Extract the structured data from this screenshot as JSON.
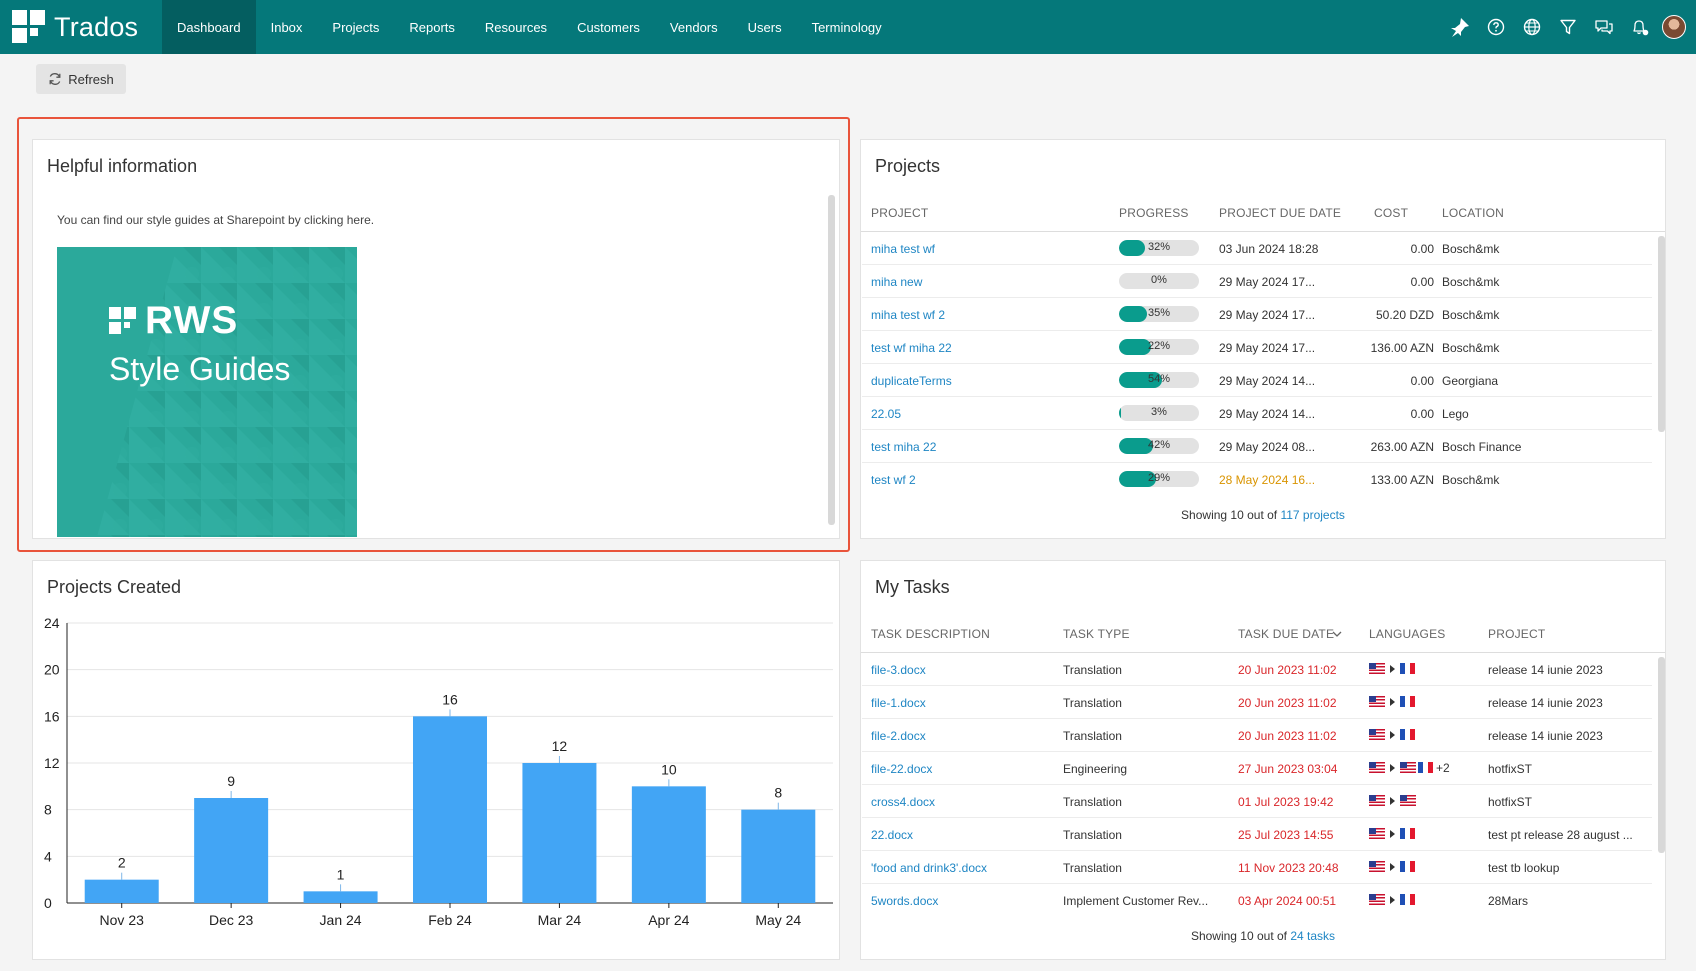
{
  "app": {
    "logo_text": "Trados",
    "nav": [
      "Dashboard",
      "Inbox",
      "Projects",
      "Reports",
      "Resources",
      "Customers",
      "Vendors",
      "Users",
      "Terminology"
    ],
    "active_nav": "Dashboard",
    "right_icons": [
      "pin-icon",
      "help-icon",
      "globe-icon",
      "filter-icon",
      "chat-icon",
      "notifications-icon"
    ],
    "accent_color": "#05787a"
  },
  "toolbar": {
    "refresh_label": "Refresh"
  },
  "helpful": {
    "title": "Helpful information",
    "text": "You can find our style guides at Sharepoint by clicking ",
    "link_text": "here",
    "text_end": ".",
    "banner_brand": "RWS",
    "banner_title": "Style Guides"
  },
  "projects": {
    "title": "Projects",
    "columns": [
      "PROJECT",
      "PROGRESS",
      "PROJECT DUE DATE",
      "COST",
      "LOCATION"
    ],
    "rows": [
      {
        "name": "miha test wf",
        "progress": 32,
        "due": "03 Jun 2024 18:28",
        "due_status": "normal",
        "cost": "0.00",
        "location": "Bosch&mk"
      },
      {
        "name": "miha new",
        "progress": 0,
        "due": "29 May 2024 17...",
        "due_status": "normal",
        "cost": "0.00",
        "location": "Bosch&mk"
      },
      {
        "name": "miha test wf 2",
        "progress": 35,
        "due": "29 May 2024 17...",
        "due_status": "normal",
        "cost": "50.20 DZD",
        "location": "Bosch&mk"
      },
      {
        "name": "test wf miha 22",
        "progress": 22,
        "due": "29 May 2024 17...",
        "due_status": "normal",
        "cost": "136.00 AZN",
        "location": "Bosch&mk"
      },
      {
        "name": "duplicateTerms",
        "progress": 54,
        "due": "29 May 2024 14...",
        "due_status": "normal",
        "cost": "0.00",
        "location": "Georgiana"
      },
      {
        "name": "22.05",
        "progress": 3,
        "due": "29 May 2024 14...",
        "due_status": "normal",
        "cost": "0.00",
        "location": "Lego"
      },
      {
        "name": "test miha 22",
        "progress": 42,
        "due": "29 May 2024 08...",
        "due_status": "normal",
        "cost": "263.00 AZN",
        "location": "Bosch Finance"
      },
      {
        "name": "test wf 2",
        "progress": 29,
        "due": "28 May 2024 16...",
        "due_status": "warning",
        "cost": "133.00 AZN",
        "location": "Bosch&mk"
      }
    ],
    "footer_prefix": "Showing 10 out of ",
    "footer_link": "117 projects"
  },
  "chart": {
    "title": "Projects Created"
  },
  "chart_data": {
    "type": "bar",
    "title": "Projects Created",
    "categories": [
      "Nov 23",
      "Dec 23",
      "Jan 24",
      "Feb 24",
      "Mar 24",
      "Apr 24",
      "May 24"
    ],
    "values": [
      2,
      9,
      1,
      16,
      12,
      10,
      8
    ],
    "ylim": [
      0,
      24
    ],
    "yticks": [
      0,
      4,
      8,
      12,
      16,
      20,
      24
    ],
    "grid": true,
    "color": "#42a5f5"
  },
  "tasks": {
    "title": "My Tasks",
    "columns": [
      "TASK DESCRIPTION",
      "TASK TYPE",
      "TASK DUE DATE",
      "LANGUAGES",
      "PROJECT"
    ],
    "rows": [
      {
        "description": "file-3.docx",
        "type": "Translation",
        "due": "20 Jun 2023 11:02",
        "langs": [
          "us",
          "fr"
        ],
        "extra": "",
        "project": "release 14 iunie 2023"
      },
      {
        "description": "file-1.docx",
        "type": "Translation",
        "due": "20 Jun 2023 11:02",
        "langs": [
          "us",
          "fr"
        ],
        "extra": "",
        "project": "release 14 iunie 2023"
      },
      {
        "description": "file-2.docx",
        "type": "Translation",
        "due": "20 Jun 2023 11:02",
        "langs": [
          "us",
          "fr"
        ],
        "extra": "",
        "project": "release 14 iunie 2023"
      },
      {
        "description": "file-22.docx",
        "type": "Engineering",
        "due": "27 Jun 2023 03:04",
        "langs": [
          "us",
          "us",
          "fr"
        ],
        "extra": "+2",
        "project": "hotfixST"
      },
      {
        "description": "cross4.docx",
        "type": "Translation",
        "due": "01 Jul 2023 19:42",
        "langs": [
          "us",
          "us"
        ],
        "extra": "",
        "project": "hotfixST"
      },
      {
        "description": "22.docx",
        "type": "Translation",
        "due": "25 Jul 2023 14:55",
        "langs": [
          "us",
          "fr"
        ],
        "extra": "",
        "project": "test pt release 28 august ..."
      },
      {
        "description": "'food and drink3'.docx",
        "type": "Translation",
        "due": "11 Nov 2023 20:48",
        "langs": [
          "us",
          "fr"
        ],
        "extra": "",
        "project": "test tb lookup"
      },
      {
        "description": "5words.docx",
        "type": "Implement Customer Rev...",
        "due": "03 Apr 2024 00:51",
        "langs": [
          "us",
          "fr"
        ],
        "extra": "",
        "project": "28Mars"
      }
    ],
    "footer_prefix": "Showing 10 out of ",
    "footer_link": "24 tasks"
  }
}
